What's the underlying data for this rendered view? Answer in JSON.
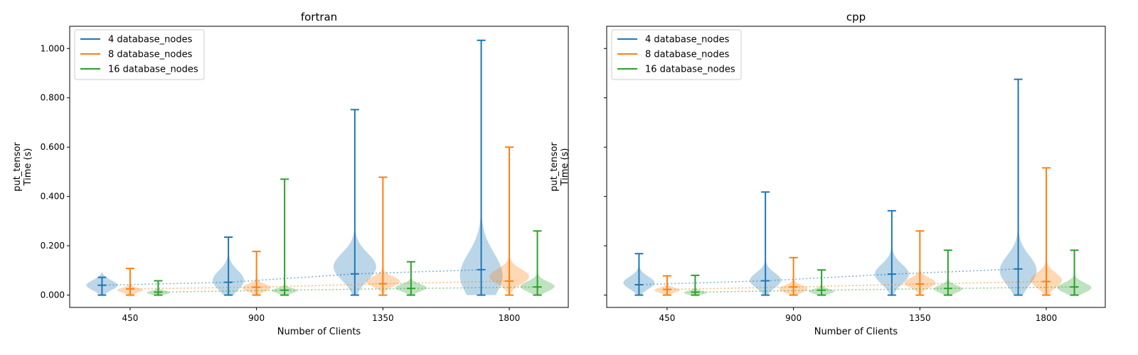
{
  "chart_data": [
    {
      "type": "violin",
      "title": "fortran",
      "xlabel": "Number of Clients",
      "ylabel_lines": [
        "put_tensor",
        "Time (s)"
      ],
      "x_ticks": [
        450,
        900,
        1350,
        1800
      ],
      "y_ticks": [
        0.0,
        0.2,
        0.4,
        0.6,
        0.8,
        1.0
      ],
      "y_tick_labels": [
        "0.000",
        "0.200",
        "0.400",
        "0.600",
        "0.800",
        "1.000"
      ],
      "xlim": [
        235,
        2010
      ],
      "ylim": [
        -0.05,
        1.09
      ],
      "legend": "top-left",
      "grid": false,
      "series": [
        {
          "name": "4 database_nodes",
          "color": "#1f77b4",
          "offset": -100,
          "min": [
            0.0,
            0.0,
            0.0,
            0.0
          ],
          "max": [
            0.072,
            0.235,
            0.752,
            1.033
          ],
          "median": [
            0.04,
            0.052,
            0.086,
            0.103
          ],
          "mode": [
            0.04,
            0.06,
            0.115,
            0.08
          ],
          "spread": [
            0.02,
            0.04,
            0.055,
            0.09
          ],
          "half_width": [
            22,
            22,
            30,
            30
          ]
        },
        {
          "name": "8 database_nodes",
          "color": "#ff7f0e",
          "offset": 0,
          "min": [
            0.0,
            0.0,
            0.0,
            0.0
          ],
          "max": [
            0.108,
            0.177,
            0.478,
            0.6
          ],
          "median": [
            0.025,
            0.032,
            0.046,
            0.057
          ],
          "mode": [
            0.02,
            0.03,
            0.055,
            0.075
          ],
          "spread": [
            0.01,
            0.015,
            0.02,
            0.03
          ],
          "half_width": [
            18,
            20,
            24,
            28
          ]
        },
        {
          "name": "16 database_nodes",
          "color": "#2ca02c",
          "offset": 100,
          "min": [
            0.0,
            0.0,
            0.0,
            0.0
          ],
          "max": [
            0.058,
            0.47,
            0.135,
            0.26
          ],
          "median": [
            0.012,
            0.02,
            0.027,
            0.033
          ],
          "mode": [
            0.01,
            0.018,
            0.03,
            0.035
          ],
          "spread": [
            0.008,
            0.01,
            0.015,
            0.02
          ],
          "half_width": [
            16,
            18,
            22,
            24
          ]
        }
      ]
    },
    {
      "type": "violin",
      "title": "cpp",
      "xlabel": "Number of Clients",
      "ylabel_lines": [
        "put_tensor",
        "Time (s)"
      ],
      "x_ticks": [
        450,
        900,
        1350,
        1800
      ],
      "y_ticks": [
        0.0,
        0.2,
        0.4,
        0.6,
        0.8,
        1.0
      ],
      "y_tick_labels": [],
      "xlim": [
        235,
        2010
      ],
      "ylim": [
        -0.05,
        1.09
      ],
      "legend": "top-left",
      "grid": false,
      "series": [
        {
          "name": "4 database_nodes",
          "color": "#1f77b4",
          "offset": -100,
          "min": [
            0.0,
            0.0,
            0.0,
            0.0
          ],
          "max": [
            0.168,
            0.418,
            0.342,
            0.875
          ],
          "median": [
            0.042,
            0.058,
            0.085,
            0.106
          ],
          "mode": [
            0.05,
            0.06,
            0.085,
            0.1
          ],
          "spread": [
            0.025,
            0.03,
            0.04,
            0.06
          ],
          "half_width": [
            22,
            22,
            24,
            26
          ]
        },
        {
          "name": "8 database_nodes",
          "color": "#ff7f0e",
          "offset": 0,
          "min": [
            0.0,
            0.0,
            0.0,
            0.0
          ],
          "max": [
            0.078,
            0.152,
            0.26,
            0.516
          ],
          "median": [
            0.023,
            0.033,
            0.045,
            0.055
          ],
          "mode": [
            0.02,
            0.025,
            0.05,
            0.06
          ],
          "spread": [
            0.01,
            0.015,
            0.02,
            0.03
          ],
          "half_width": [
            18,
            20,
            22,
            22
          ]
        },
        {
          "name": "16 database_nodes",
          "color": "#2ca02c",
          "offset": 100,
          "min": [
            0.0,
            0.0,
            0.0,
            0.0
          ],
          "max": [
            0.08,
            0.102,
            0.182,
            0.182
          ],
          "median": [
            0.012,
            0.02,
            0.027,
            0.033
          ],
          "mode": [
            0.01,
            0.015,
            0.025,
            0.03
          ],
          "spread": [
            0.008,
            0.01,
            0.015,
            0.02
          ],
          "half_width": [
            16,
            18,
            20,
            24
          ]
        }
      ]
    }
  ]
}
